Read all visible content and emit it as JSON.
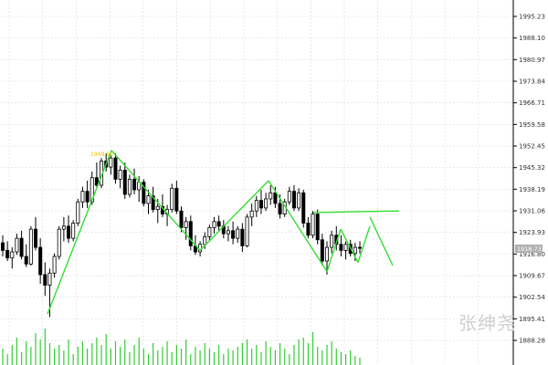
{
  "chart_data": {
    "type": "candlestick",
    "grid": true,
    "ylim": [
      1885,
      2000
    ],
    "yticks": [
      "1995.23",
      "1988.10",
      "1980.97",
      "1973.84",
      "1966.71",
      "1959.58",
      "1952.45",
      "1945.32",
      "1938.19",
      "1931.06",
      "1923.93",
      "1916.80",
      "1909.67",
      "1902.54",
      "1895.41",
      "1888.28"
    ],
    "current_price": "1918.73",
    "peak_label": "1949.96",
    "colors": {
      "up": "#000000",
      "down": "#000000",
      "volume": "#33cc33",
      "pattern": "#33dd33",
      "grid": "#d9d9d9",
      "peak_label": "#e6c200",
      "price_tag": "#b0b0b0"
    },
    "candles": [
      [
        1920.5,
        1923.0,
        1916.0,
        1918.0
      ],
      [
        1918.0,
        1921.0,
        1914.5,
        1915.5
      ],
      [
        1915.5,
        1919.0,
        1912.0,
        1917.5
      ],
      [
        1917.5,
        1923.5,
        1916.5,
        1922.0
      ],
      [
        1922.0,
        1924.5,
        1915.0,
        1916.0
      ],
      [
        1916.0,
        1920.0,
        1912.5,
        1913.5
      ],
      [
        1913.5,
        1926.0,
        1913.0,
        1925.0
      ],
      [
        1925.0,
        1929.0,
        1918.0,
        1919.0
      ],
      [
        1919.0,
        1922.0,
        1907.0,
        1910.0
      ],
      [
        1910.0,
        1914.0,
        1903.0,
        1906.5
      ],
      [
        1906.5,
        1912.0,
        1896.0,
        1910.5
      ],
      [
        1910.5,
        1917.0,
        1909.0,
        1916.0
      ],
      [
        1916.0,
        1926.0,
        1915.0,
        1925.0
      ],
      [
        1925.0,
        1929.0,
        1921.0,
        1926.0
      ],
      [
        1926.0,
        1929.5,
        1920.5,
        1922.0
      ],
      [
        1922.0,
        1928.0,
        1921.0,
        1927.0
      ],
      [
        1927.0,
        1935.0,
        1926.0,
        1934.0
      ],
      [
        1934.0,
        1939.0,
        1932.0,
        1937.5
      ],
      [
        1937.5,
        1941.0,
        1932.0,
        1934.0
      ],
      [
        1934.0,
        1944.0,
        1933.0,
        1942.0
      ],
      [
        1942.0,
        1947.0,
        1938.5,
        1939.5
      ],
      [
        1939.5,
        1948.5,
        1938.5,
        1947.5
      ],
      [
        1947.5,
        1950.0,
        1944.0,
        1945.5
      ],
      [
        1945.5,
        1949.5,
        1943.0,
        1948.5
      ],
      [
        1948.5,
        1950.0,
        1940.0,
        1941.5
      ],
      [
        1941.5,
        1946.0,
        1938.5,
        1944.5
      ],
      [
        1944.5,
        1947.0,
        1935.0,
        1936.5
      ],
      [
        1936.5,
        1943.0,
        1935.5,
        1941.5
      ],
      [
        1941.5,
        1945.0,
        1936.5,
        1938.0
      ],
      [
        1938.0,
        1942.5,
        1934.0,
        1940.5
      ],
      [
        1940.5,
        1941.5,
        1932.5,
        1933.5
      ],
      [
        1933.5,
        1938.0,
        1930.0,
        1936.0
      ],
      [
        1936.0,
        1939.0,
        1930.5,
        1931.5
      ],
      [
        1931.5,
        1935.0,
        1927.0,
        1932.5
      ],
      [
        1932.5,
        1936.5,
        1929.0,
        1930.0
      ],
      [
        1930.0,
        1933.0,
        1926.0,
        1931.5
      ],
      [
        1931.5,
        1940.0,
        1930.5,
        1938.5
      ],
      [
        1938.5,
        1941.0,
        1930.0,
        1931.0
      ],
      [
        1931.0,
        1932.5,
        1924.0,
        1925.5
      ],
      [
        1925.5,
        1929.0,
        1921.5,
        1927.5
      ],
      [
        1927.5,
        1929.5,
        1918.0,
        1919.5
      ],
      [
        1919.5,
        1923.0,
        1916.5,
        1917.5
      ],
      [
        1917.5,
        1921.0,
        1916.0,
        1920.0
      ],
      [
        1920.0,
        1924.0,
        1918.5,
        1922.5
      ],
      [
        1922.5,
        1926.5,
        1921.0,
        1925.5
      ],
      [
        1925.5,
        1929.0,
        1923.5,
        1927.5
      ],
      [
        1927.5,
        1929.5,
        1924.5,
        1926.0
      ],
      [
        1926.0,
        1928.0,
        1922.0,
        1923.5
      ],
      [
        1923.5,
        1926.0,
        1921.0,
        1924.5
      ],
      [
        1924.5,
        1927.5,
        1920.0,
        1922.0
      ],
      [
        1922.0,
        1926.0,
        1920.5,
        1925.0
      ],
      [
        1925.0,
        1927.0,
        1917.5,
        1919.5
      ],
      [
        1919.5,
        1930.0,
        1919.0,
        1929.0
      ],
      [
        1929.0,
        1933.5,
        1926.0,
        1931.0
      ],
      [
        1931.0,
        1936.0,
        1929.0,
        1934.5
      ],
      [
        1934.5,
        1938.0,
        1930.0,
        1932.0
      ],
      [
        1932.0,
        1937.0,
        1931.0,
        1935.0
      ],
      [
        1935.0,
        1939.5,
        1933.0,
        1937.0
      ],
      [
        1937.0,
        1939.0,
        1932.0,
        1933.5
      ],
      [
        1933.5,
        1936.5,
        1928.5,
        1930.0
      ],
      [
        1930.0,
        1935.0,
        1929.0,
        1934.0
      ],
      [
        1934.0,
        1939.0,
        1933.0,
        1937.5
      ],
      [
        1937.5,
        1939.5,
        1931.0,
        1932.0
      ],
      [
        1932.0,
        1938.5,
        1931.0,
        1937.0
      ],
      [
        1937.0,
        1938.0,
        1925.5,
        1927.0
      ],
      [
        1927.0,
        1929.0,
        1922.0,
        1923.0
      ],
      [
        1923.0,
        1931.0,
        1922.0,
        1930.0
      ],
      [
        1930.0,
        1931.5,
        1920.0,
        1921.5
      ],
      [
        1921.5,
        1923.5,
        1913.0,
        1914.5
      ],
      [
        1914.5,
        1921.0,
        1910.0,
        1919.0
      ],
      [
        1919.0,
        1924.5,
        1917.0,
        1923.0
      ],
      [
        1923.0,
        1926.0,
        1918.0,
        1920.0
      ],
      [
        1920.0,
        1923.0,
        1916.0,
        1918.0
      ],
      [
        1918.0,
        1921.0,
        1915.0,
        1920.0
      ],
      [
        1920.0,
        1921.5,
        1916.0,
        1917.0
      ],
      [
        1917.0,
        1920.5,
        1914.5,
        1919.0
      ],
      [
        1919.0,
        1921.0,
        1917.0,
        1918.7
      ]
    ],
    "volume": [
      18,
      12,
      22,
      30,
      14,
      26,
      20,
      35,
      28,
      40,
      24,
      18,
      22,
      16,
      28,
      12,
      20,
      26,
      18,
      24,
      30,
      22,
      34,
      18,
      26,
      20,
      28,
      14,
      22,
      30,
      18,
      12,
      24,
      16,
      20,
      26,
      14,
      22,
      18,
      28,
      12,
      20,
      16,
      24,
      18,
      14,
      22,
      12,
      18,
      16,
      20,
      24,
      28,
      18,
      22,
      14,
      26,
      20,
      16,
      24,
      18,
      12,
      22,
      28,
      30,
      24,
      36,
      20,
      16,
      22,
      26,
      18,
      14,
      12,
      16,
      10,
      8
    ],
    "pattern_lines": [
      [
        [
          52,
          1897
        ],
        [
          122,
          1951
        ]
      ],
      [
        [
          122,
          1951
        ],
        [
          219,
          1918
        ]
      ],
      [
        [
          219,
          1918
        ],
        [
          294,
          1941
        ]
      ],
      [
        [
          294,
          1941
        ],
        [
          358,
          1911
        ]
      ],
      [
        [
          358,
          1911
        ],
        [
          373,
          1925
        ]
      ],
      [
        [
          373,
          1925
        ],
        [
          392,
          1914
        ]
      ],
      [
        [
          392,
          1914
        ],
        [
          405,
          1926
        ]
      ],
      [
        [
          405,
          1929
        ],
        [
          430,
          1913
        ]
      ],
      [
        [
          343,
          1930.5
        ],
        [
          437,
          1931
        ]
      ]
    ]
  },
  "watermark": "张绅尧"
}
